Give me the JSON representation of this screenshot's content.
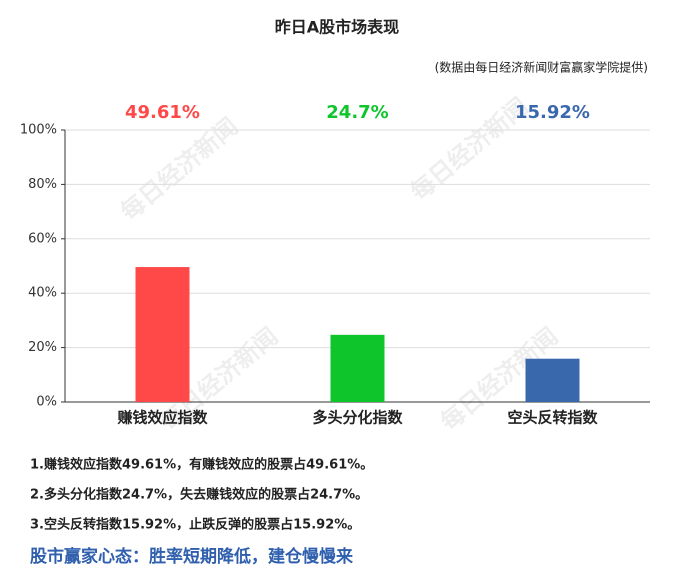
{
  "chart_data": {
    "type": "bar",
    "title": "昨日A股市场表现",
    "subtitle": "(数据由每日经济新闻财富赢家学院提供)",
    "categories": [
      "赚钱效应指数",
      "多头分化指数",
      "空头反转指数"
    ],
    "values": [
      49.61,
      24.7,
      15.92
    ],
    "value_labels": [
      "49.61%",
      "24.7%",
      "15.92%"
    ],
    "colors": [
      "#ff4848",
      "#0ec62b",
      "#3a68ad"
    ],
    "ylim": [
      0,
      100
    ],
    "yticks": [
      {
        "value": 0,
        "label": "0%"
      },
      {
        "value": 20,
        "label": "20%"
      },
      {
        "value": 40,
        "label": "40%"
      },
      {
        "value": 60,
        "label": "60%"
      },
      {
        "value": 80,
        "label": "80%"
      },
      {
        "value": 100,
        "label": "100%"
      }
    ],
    "grid": true
  },
  "watermark": "每日经济新闻",
  "notes": [
    "1.赚钱效应指数49.61%，有赚钱效应的股票占49.61%。",
    "2.多头分化指数24.7%，失去赚钱效应的股票占24.7%。",
    "3.空头反转指数15.92%，止跌反弹的股票占15.92%。"
  ],
  "footer": "股市赢家心态：胜率短期降低，建仓慢慢来"
}
